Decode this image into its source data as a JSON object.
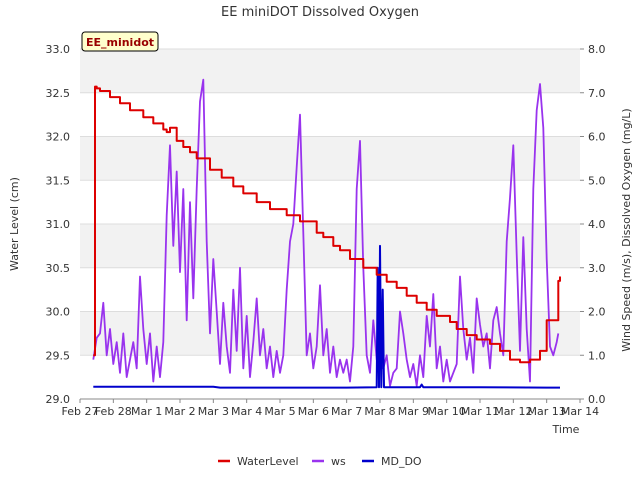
{
  "chart_data": {
    "type": "line",
    "title": "EE miniDOT Dissolved Oxygen",
    "badge": "EE_minidot",
    "xlabel": "Time",
    "ylabel_left": "Water Level (cm)",
    "ylabel_right": "Wind Speed (m/s), Dissolved Oxygen (mg/L)",
    "ylim_left": [
      29.0,
      33.0
    ],
    "ylim_right": [
      0.0,
      8.0
    ],
    "xlim": [
      0,
      15
    ],
    "grid": "horizontal bands",
    "legend_position": "bottom-center",
    "x_ticks": [
      {
        "value": 0,
        "label": "Feb 27"
      },
      {
        "value": 1,
        "label": "Feb 28"
      },
      {
        "value": 2,
        "label": "Mar 1"
      },
      {
        "value": 3,
        "label": "Mar 2"
      },
      {
        "value": 4,
        "label": "Mar 3"
      },
      {
        "value": 5,
        "label": "Mar 4"
      },
      {
        "value": 6,
        "label": "Mar 5"
      },
      {
        "value": 7,
        "label": "Mar 6"
      },
      {
        "value": 8,
        "label": "Mar 7"
      },
      {
        "value": 9,
        "label": "Mar 8"
      },
      {
        "value": 10,
        "label": "Mar 9"
      },
      {
        "value": 11,
        "label": "Mar 10"
      },
      {
        "value": 12,
        "label": "Mar 11"
      },
      {
        "value": 13,
        "label": "Mar 12"
      },
      {
        "value": 14,
        "label": "Mar 13"
      },
      {
        "value": 15,
        "label": "Mar 14"
      }
    ],
    "y_ticks_left": [
      "29.0",
      "29.5",
      "30.0",
      "30.5",
      "31.0",
      "31.5",
      "32.0",
      "32.5",
      "33.0"
    ],
    "y_ticks_right": [
      "0.0",
      "1.0",
      "2.0",
      "3.0",
      "4.0",
      "5.0",
      "6.0",
      "7.0",
      "8.0"
    ],
    "series": [
      {
        "name": "WaterLevel",
        "axis": "left",
        "color": "#dd0000",
        "x": [
          0.4,
          0.45,
          0.5,
          0.6,
          0.9,
          1.2,
          1.5,
          1.9,
          2.2,
          2.5,
          2.6,
          2.7,
          2.9,
          3.1,
          3.3,
          3.5,
          3.9,
          4.25,
          4.6,
          4.9,
          5.3,
          5.7,
          6.2,
          6.6,
          7.1,
          7.3,
          7.6,
          7.8,
          8.1,
          8.5,
          8.9,
          9.2,
          9.5,
          9.8,
          10.1,
          10.4,
          10.7,
          11.1,
          11.3,
          11.6,
          11.9,
          12.3,
          12.6,
          12.9,
          13.2,
          13.5,
          13.8,
          14.0,
          14.2,
          14.35,
          14.4
        ],
        "y": [
          29.5,
          32.57,
          32.55,
          32.52,
          32.45,
          32.38,
          32.3,
          32.22,
          32.15,
          32.08,
          32.05,
          32.1,
          31.95,
          31.88,
          31.82,
          31.75,
          31.62,
          31.53,
          31.43,
          31.35,
          31.25,
          31.17,
          31.1,
          31.03,
          30.9,
          30.85,
          30.75,
          30.7,
          30.6,
          30.5,
          30.42,
          30.34,
          30.27,
          30.18,
          30.1,
          30.02,
          29.95,
          29.88,
          29.8,
          29.73,
          29.68,
          29.63,
          29.55,
          29.45,
          29.42,
          29.45,
          29.55,
          29.9,
          29.9,
          30.35,
          30.4
        ]
      },
      {
        "name": "ws",
        "axis": "right",
        "color": "#9933ee",
        "x": [
          0.4,
          0.5,
          0.6,
          0.7,
          0.8,
          0.9,
          1.0,
          1.1,
          1.2,
          1.3,
          1.4,
          1.5,
          1.6,
          1.7,
          1.8,
          1.9,
          2.0,
          2.1,
          2.2,
          2.3,
          2.4,
          2.5,
          2.6,
          2.7,
          2.8,
          2.9,
          3.0,
          3.1,
          3.2,
          3.3,
          3.4,
          3.5,
          3.6,
          3.7,
          3.8,
          3.9,
          4.0,
          4.1,
          4.2,
          4.3,
          4.4,
          4.5,
          4.6,
          4.7,
          4.8,
          4.9,
          5.0,
          5.1,
          5.2,
          5.3,
          5.4,
          5.5,
          5.6,
          5.7,
          5.8,
          5.9,
          6.0,
          6.1,
          6.2,
          6.3,
          6.4,
          6.5,
          6.6,
          6.7,
          6.8,
          6.9,
          7.0,
          7.1,
          7.2,
          7.3,
          7.4,
          7.5,
          7.6,
          7.7,
          7.8,
          7.9,
          8.0,
          8.1,
          8.2,
          8.3,
          8.4,
          8.5,
          8.6,
          8.7,
          8.8,
          8.9,
          9.0,
          9.1,
          9.2,
          9.3,
          9.4,
          9.5,
          9.6,
          9.7,
          9.8,
          9.9,
          10.0,
          10.1,
          10.2,
          10.3,
          10.4,
          10.5,
          10.6,
          10.7,
          10.8,
          10.9,
          11.0,
          11.1,
          11.2,
          11.3,
          11.4,
          11.5,
          11.6,
          11.7,
          11.8,
          11.9,
          12.0,
          12.1,
          12.2,
          12.3,
          12.4,
          12.5,
          12.6,
          12.7,
          12.8,
          12.9,
          13.0,
          13.1,
          13.2,
          13.3,
          13.4,
          13.5,
          13.6,
          13.7,
          13.8,
          13.9,
          14.0,
          14.1,
          14.2,
          14.3,
          14.35
        ],
        "y": [
          0.9,
          1.4,
          1.5,
          2.2,
          1.0,
          1.6,
          0.8,
          1.3,
          0.6,
          1.5,
          0.5,
          0.9,
          1.3,
          0.7,
          2.8,
          1.6,
          0.8,
          1.5,
          0.4,
          1.2,
          0.5,
          1.3,
          4.2,
          5.8,
          3.5,
          5.2,
          2.9,
          4.8,
          1.8,
          4.5,
          2.3,
          4.8,
          6.8,
          7.3,
          3.6,
          1.5,
          3.2,
          2.0,
          0.8,
          2.2,
          1.2,
          0.6,
          2.5,
          1.1,
          3.0,
          0.7,
          1.9,
          0.5,
          1.3,
          2.3,
          1.0,
          1.6,
          0.7,
          1.2,
          0.5,
          1.1,
          0.6,
          1.0,
          2.5,
          3.6,
          4.0,
          5.3,
          6.5,
          3.8,
          1.0,
          1.5,
          0.7,
          1.2,
          2.6,
          1.0,
          1.6,
          0.6,
          1.2,
          0.5,
          0.9,
          0.6,
          0.9,
          0.4,
          1.2,
          4.8,
          5.9,
          3.0,
          1.0,
          0.6,
          1.8,
          0.9,
          1.7,
          0.7,
          1.0,
          0.3,
          0.6,
          0.7,
          2.0,
          1.5,
          0.9,
          0.5,
          0.8,
          0.3,
          1.0,
          0.5,
          1.9,
          1.2,
          2.4,
          0.7,
          1.2,
          0.4,
          0.9,
          0.4,
          0.6,
          0.8,
          2.8,
          1.6,
          0.9,
          1.4,
          0.6,
          2.3,
          1.7,
          1.2,
          1.5,
          0.7,
          1.8,
          2.1,
          1.5,
          1.0,
          3.6,
          4.6,
          5.8,
          3.3,
          1.1,
          3.7,
          1.6,
          0.4,
          4.8,
          6.6,
          7.2,
          6.2,
          3.2,
          1.2,
          1.0,
          1.3,
          1.5
        ]
      },
      {
        "name": "MD_DO",
        "axis": "right",
        "color": "#0000cc",
        "x": [
          0.4,
          4.0,
          4.2,
          7.0,
          8.0,
          8.9,
          8.93,
          8.97,
          9.0,
          9.04,
          9.08,
          9.12,
          9.5,
          10.2,
          10.25,
          10.3,
          12.0,
          14.0,
          14.4
        ],
        "y": [
          0.28,
          0.28,
          0.26,
          0.26,
          0.26,
          0.27,
          3.0,
          0.27,
          3.5,
          0.27,
          2.5,
          0.27,
          0.27,
          0.27,
          0.33,
          0.27,
          0.27,
          0.26,
          0.26
        ]
      }
    ]
  }
}
